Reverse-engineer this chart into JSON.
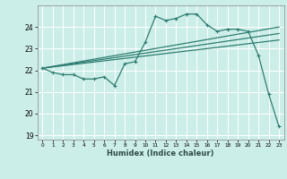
{
  "xlabel": "Humidex (Indice chaleur)",
  "ylabel": "",
  "bg_color": "#cceee8",
  "grid_color": "#ffffff",
  "line_color": "#2e7d72",
  "xlim": [
    -0.5,
    23.5
  ],
  "ylim": [
    18.8,
    25.0
  ],
  "yticks": [
    19,
    20,
    21,
    22,
    23,
    24
  ],
  "xticks": [
    0,
    1,
    2,
    3,
    4,
    5,
    6,
    7,
    8,
    9,
    10,
    11,
    12,
    13,
    14,
    15,
    16,
    17,
    18,
    19,
    20,
    21,
    22,
    23
  ],
  "series": [
    {
      "x": [
        0,
        1,
        2,
        3,
        4,
        5,
        6,
        7,
        8,
        9,
        10,
        11,
        12,
        13,
        14,
        15,
        16,
        17,
        18,
        19,
        20,
        21,
        22,
        23
      ],
      "y": [
        22.1,
        21.9,
        21.8,
        21.8,
        21.6,
        21.6,
        21.7,
        21.3,
        22.3,
        22.4,
        23.3,
        24.5,
        24.3,
        24.4,
        24.6,
        24.6,
        24.1,
        23.8,
        23.9,
        23.9,
        23.8,
        22.7,
        20.9,
        19.4
      ]
    },
    {
      "x": [
        0,
        23
      ],
      "y": [
        22.1,
        24.0
      ]
    },
    {
      "x": [
        0,
        23
      ],
      "y": [
        22.1,
        23.7
      ]
    },
    {
      "x": [
        0,
        23
      ],
      "y": [
        22.1,
        23.4
      ]
    }
  ]
}
